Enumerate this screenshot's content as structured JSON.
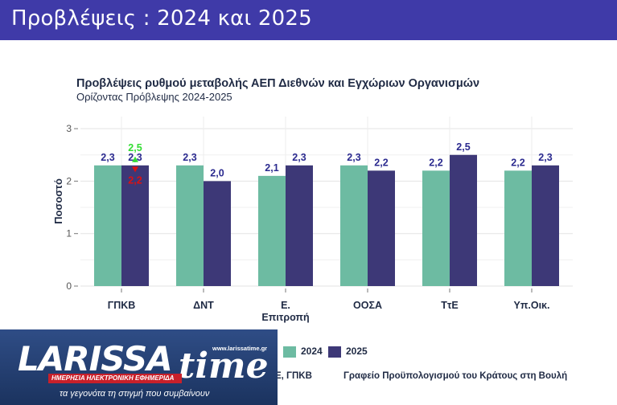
{
  "header": {
    "title": "Προβλέψεις : 2024 και 2025"
  },
  "chart_data": {
    "type": "bar",
    "title": "Προβλέψεις ρυθμού μεταβολής ΑΕΠ Διεθνών και Εγχώριων Οργανισμών",
    "subtitle": "Ορίζοντας Πρόβλεψης 2024-2025",
    "ylabel": "Ποσοστό",
    "xlabel": "",
    "ylim": [
      0,
      3
    ],
    "yticks": [
      "0",
      "1",
      "2",
      "3"
    ],
    "grid": true,
    "categories": [
      "ΓΠΚΒ",
      "ΔΝΤ",
      "Ε.\nΕπιτροπή",
      "ΟΟΣΑ",
      "ΤτΕ",
      "Υπ.Οικ."
    ],
    "series": [
      {
        "name": "2024",
        "color": "#6dbba2",
        "values": [
          2.3,
          2.3,
          2.1,
          2.3,
          2.2,
          2.2
        ],
        "labels": [
          "2,3",
          "2,3",
          "2,1",
          "2,3",
          "2,2",
          "2,2"
        ]
      },
      {
        "name": "2025",
        "color": "#3d3877",
        "values": [
          2.3,
          2.0,
          2.3,
          2.2,
          2.5,
          2.3
        ],
        "labels": [
          "2,3",
          "2,0",
          "2,3",
          "2,2",
          "2,5",
          "2,3"
        ]
      }
    ],
    "annotations": [
      {
        "category": "ΓΠΚΒ",
        "series": "2025",
        "value": 2.5,
        "label": "2,5",
        "direction": "up",
        "color": "#33dd33"
      },
      {
        "category": "ΓΠΚΒ",
        "series": "2025",
        "value": 2.2,
        "label": "2,2",
        "direction": "down",
        "color": "#dd1111"
      }
    ],
    "legend_position": "bottom-right",
    "source": {
      "left": "Ε, ΓΠΚΒ",
      "right": "Γραφείο Προϋπολογισμού του Κράτους στη Βουλή"
    }
  },
  "logo": {
    "brand": "LARISSA",
    "brand_suffix": "time",
    "url": "www.larissatime.gr",
    "subtitle": "ΗΜΕΡΗΣΙΑ ΗΛΕΚΤΡΟΝΙΚΗ ΕΦΗΜΕΡΙΔΑ",
    "tagline": "τα γεγονότα τη στιγμή που συμβαίνουν"
  }
}
